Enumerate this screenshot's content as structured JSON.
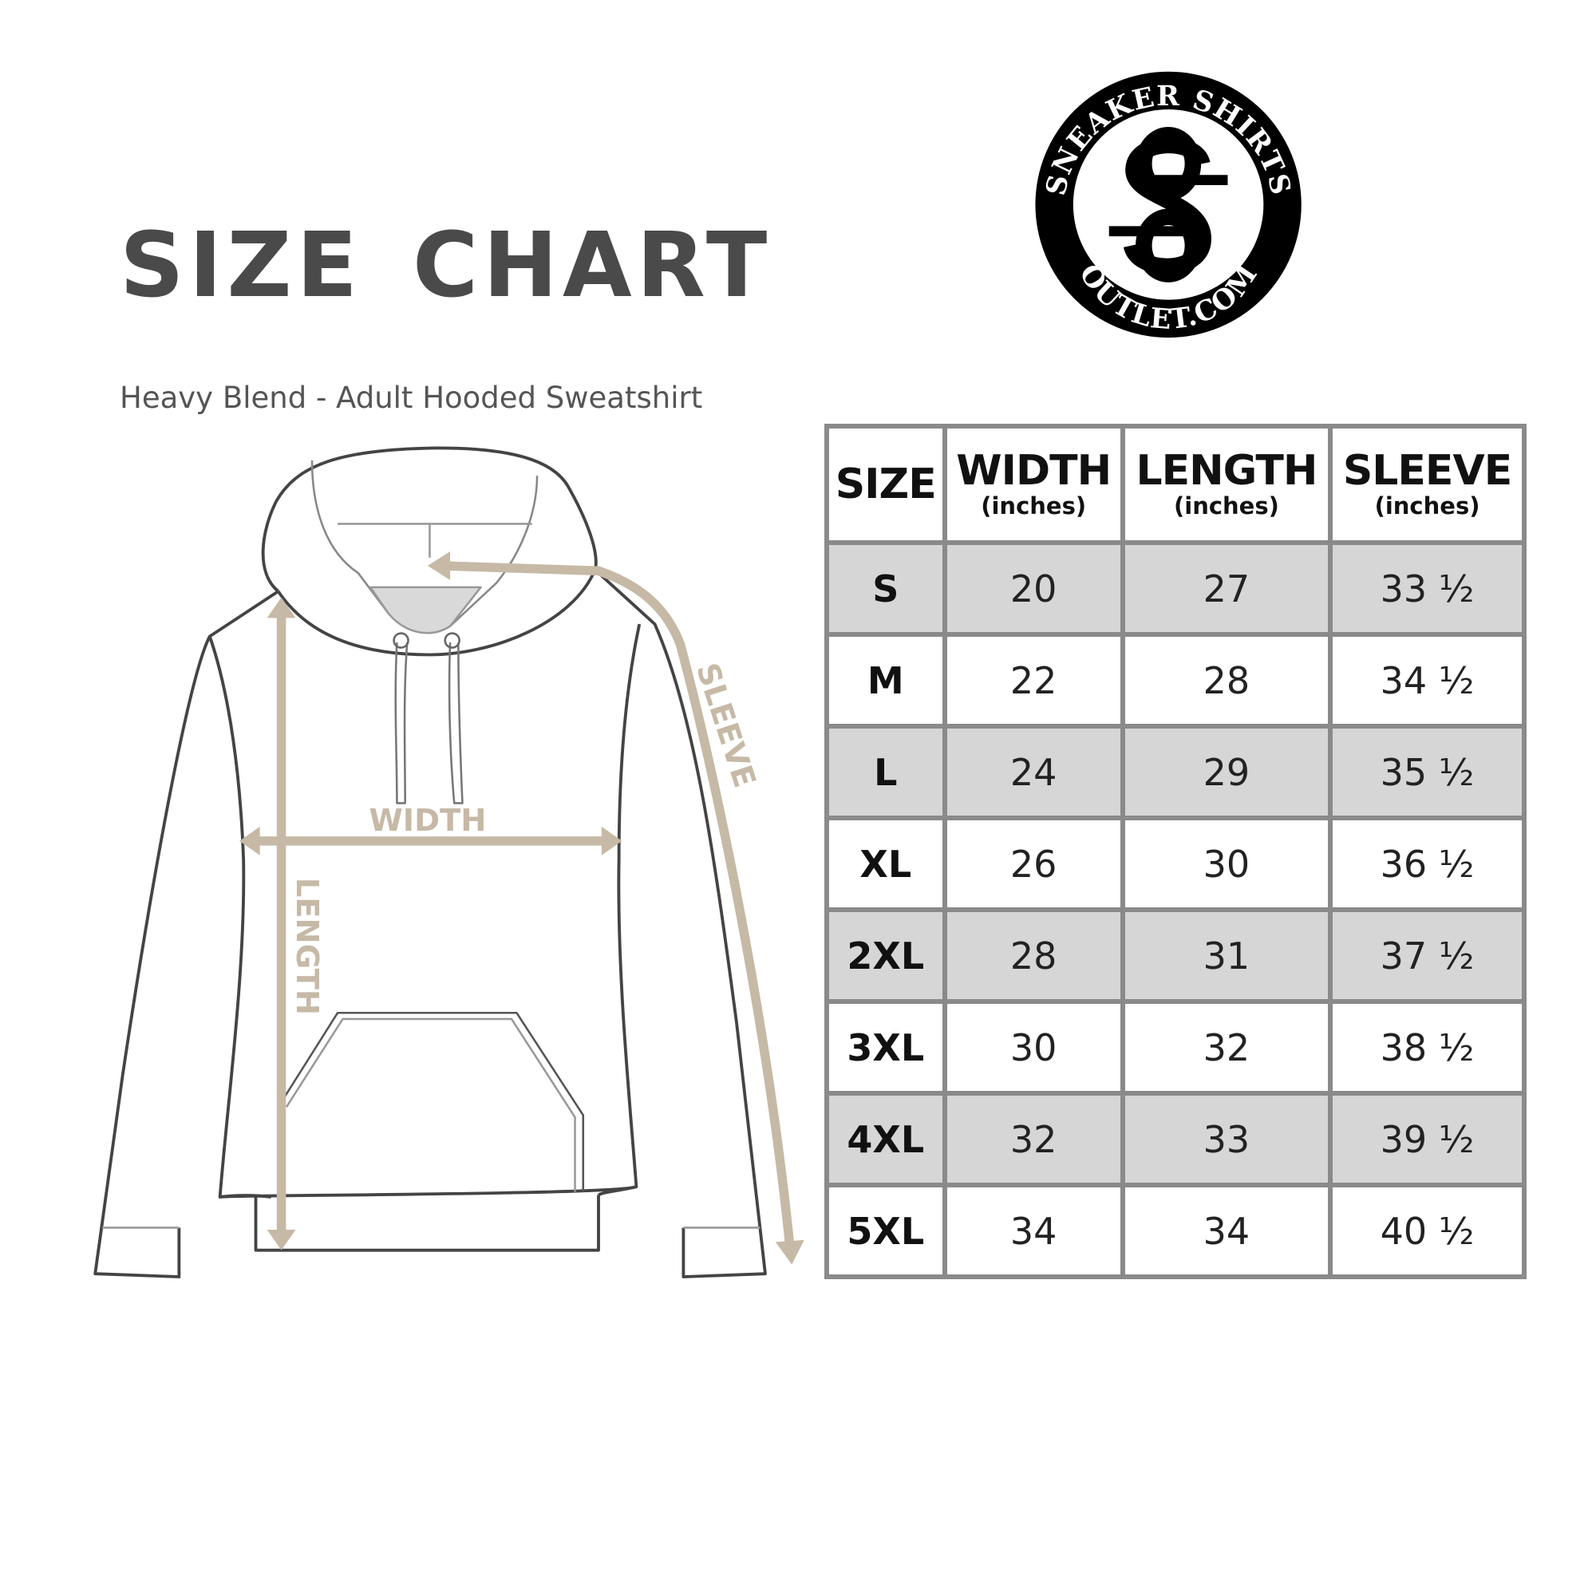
{
  "header": {
    "title": "SIZE CHART",
    "subtitle": "Heavy Blend - Adult Hooded Sweatshirt"
  },
  "logo": {
    "top_text": "SNEAKER SHIRTS",
    "bottom_text": "OUTLET.COM",
    "monogram": "SS"
  },
  "diagram": {
    "width_label": "WIDTH",
    "length_label": "LENGTH",
    "sleeve_label": "SLEEVE"
  },
  "colors": {
    "arrow": "#c6b9a6",
    "outline": "#444444",
    "row_shade": "#d6d6d6",
    "grid": "#8a8a8a"
  },
  "table": {
    "columns": [
      {
        "label": "SIZE",
        "unit": ""
      },
      {
        "label": "WIDTH",
        "unit": "(inches)"
      },
      {
        "label": "LENGTH",
        "unit": "(inches)"
      },
      {
        "label": "SLEEVE",
        "unit": "(inches)"
      }
    ],
    "rows": [
      [
        "S",
        "20",
        "27",
        "33 ½"
      ],
      [
        "M",
        "22",
        "28",
        "34 ½"
      ],
      [
        "L",
        "24",
        "29",
        "35 ½"
      ],
      [
        "XL",
        "26",
        "30",
        "36 ½"
      ],
      [
        "2XL",
        "28",
        "31",
        "37 ½"
      ],
      [
        "3XL",
        "30",
        "32",
        "38 ½"
      ],
      [
        "4XL",
        "32",
        "33",
        "39 ½"
      ],
      [
        "5XL",
        "34",
        "34",
        "40 ½"
      ]
    ]
  }
}
